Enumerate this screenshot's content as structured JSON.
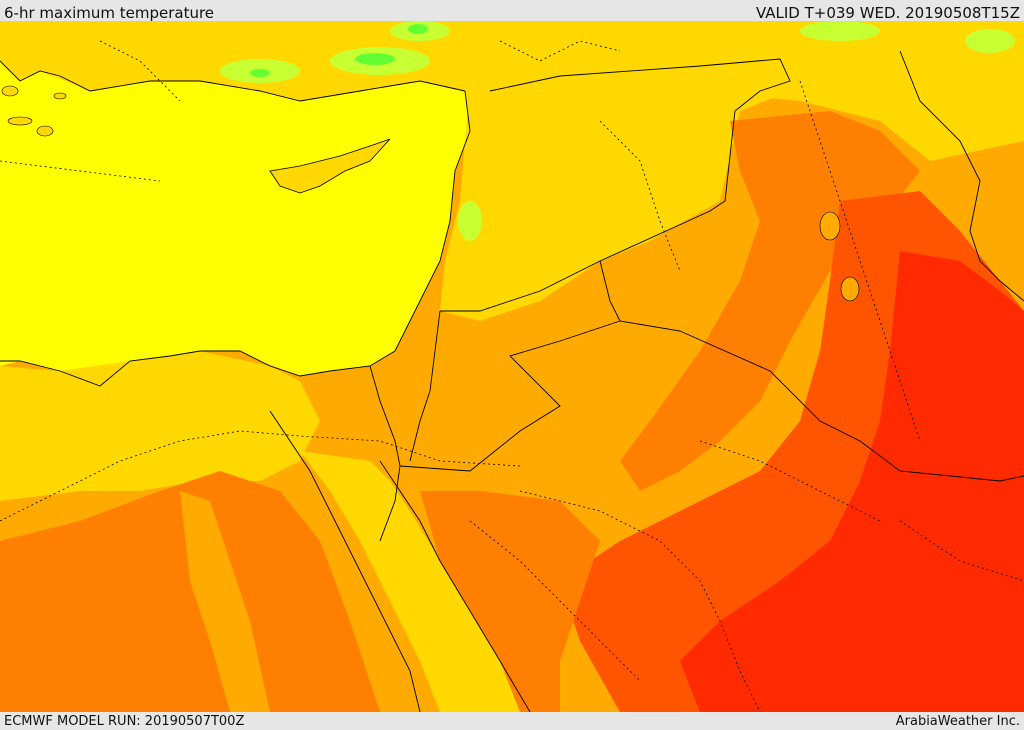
{
  "header": {
    "title": "6-hr maximum temperature",
    "valid": "VALID T+039 WED. 20190508T15Z"
  },
  "footer": {
    "model_run": "ECMWF MODEL RUN: 20190507T00Z",
    "credit": "ArabiaWeather Inc."
  },
  "colors": {
    "yellow": "#ffff00",
    "light_orange": "#ffd800",
    "orange": "#ffaa00",
    "dark_orange": "#ff7f00",
    "red_orange": "#ff5500",
    "red": "#ff2a00",
    "green": "#c8ff32",
    "bright_green": "#64ff32",
    "border_line": "#000000"
  }
}
